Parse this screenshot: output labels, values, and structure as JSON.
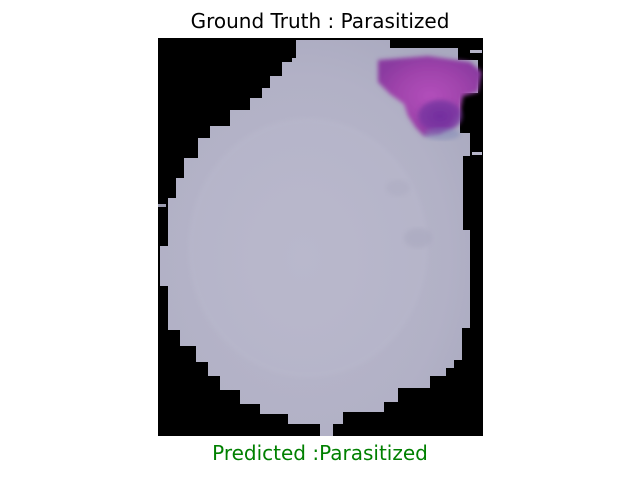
{
  "figure": {
    "title": "Ground Truth : Parasitized",
    "caption": "Predicted :Parasitized",
    "caption_color": "#008000",
    "background_color": "#ffffff"
  },
  "image": {
    "subject": "stained red blood cell micrograph",
    "background_color": "#000000",
    "cell_color": "#b6b5c9",
    "stain_color": "#9a3ea8",
    "stain_dark_color": "#5a2a8f"
  }
}
